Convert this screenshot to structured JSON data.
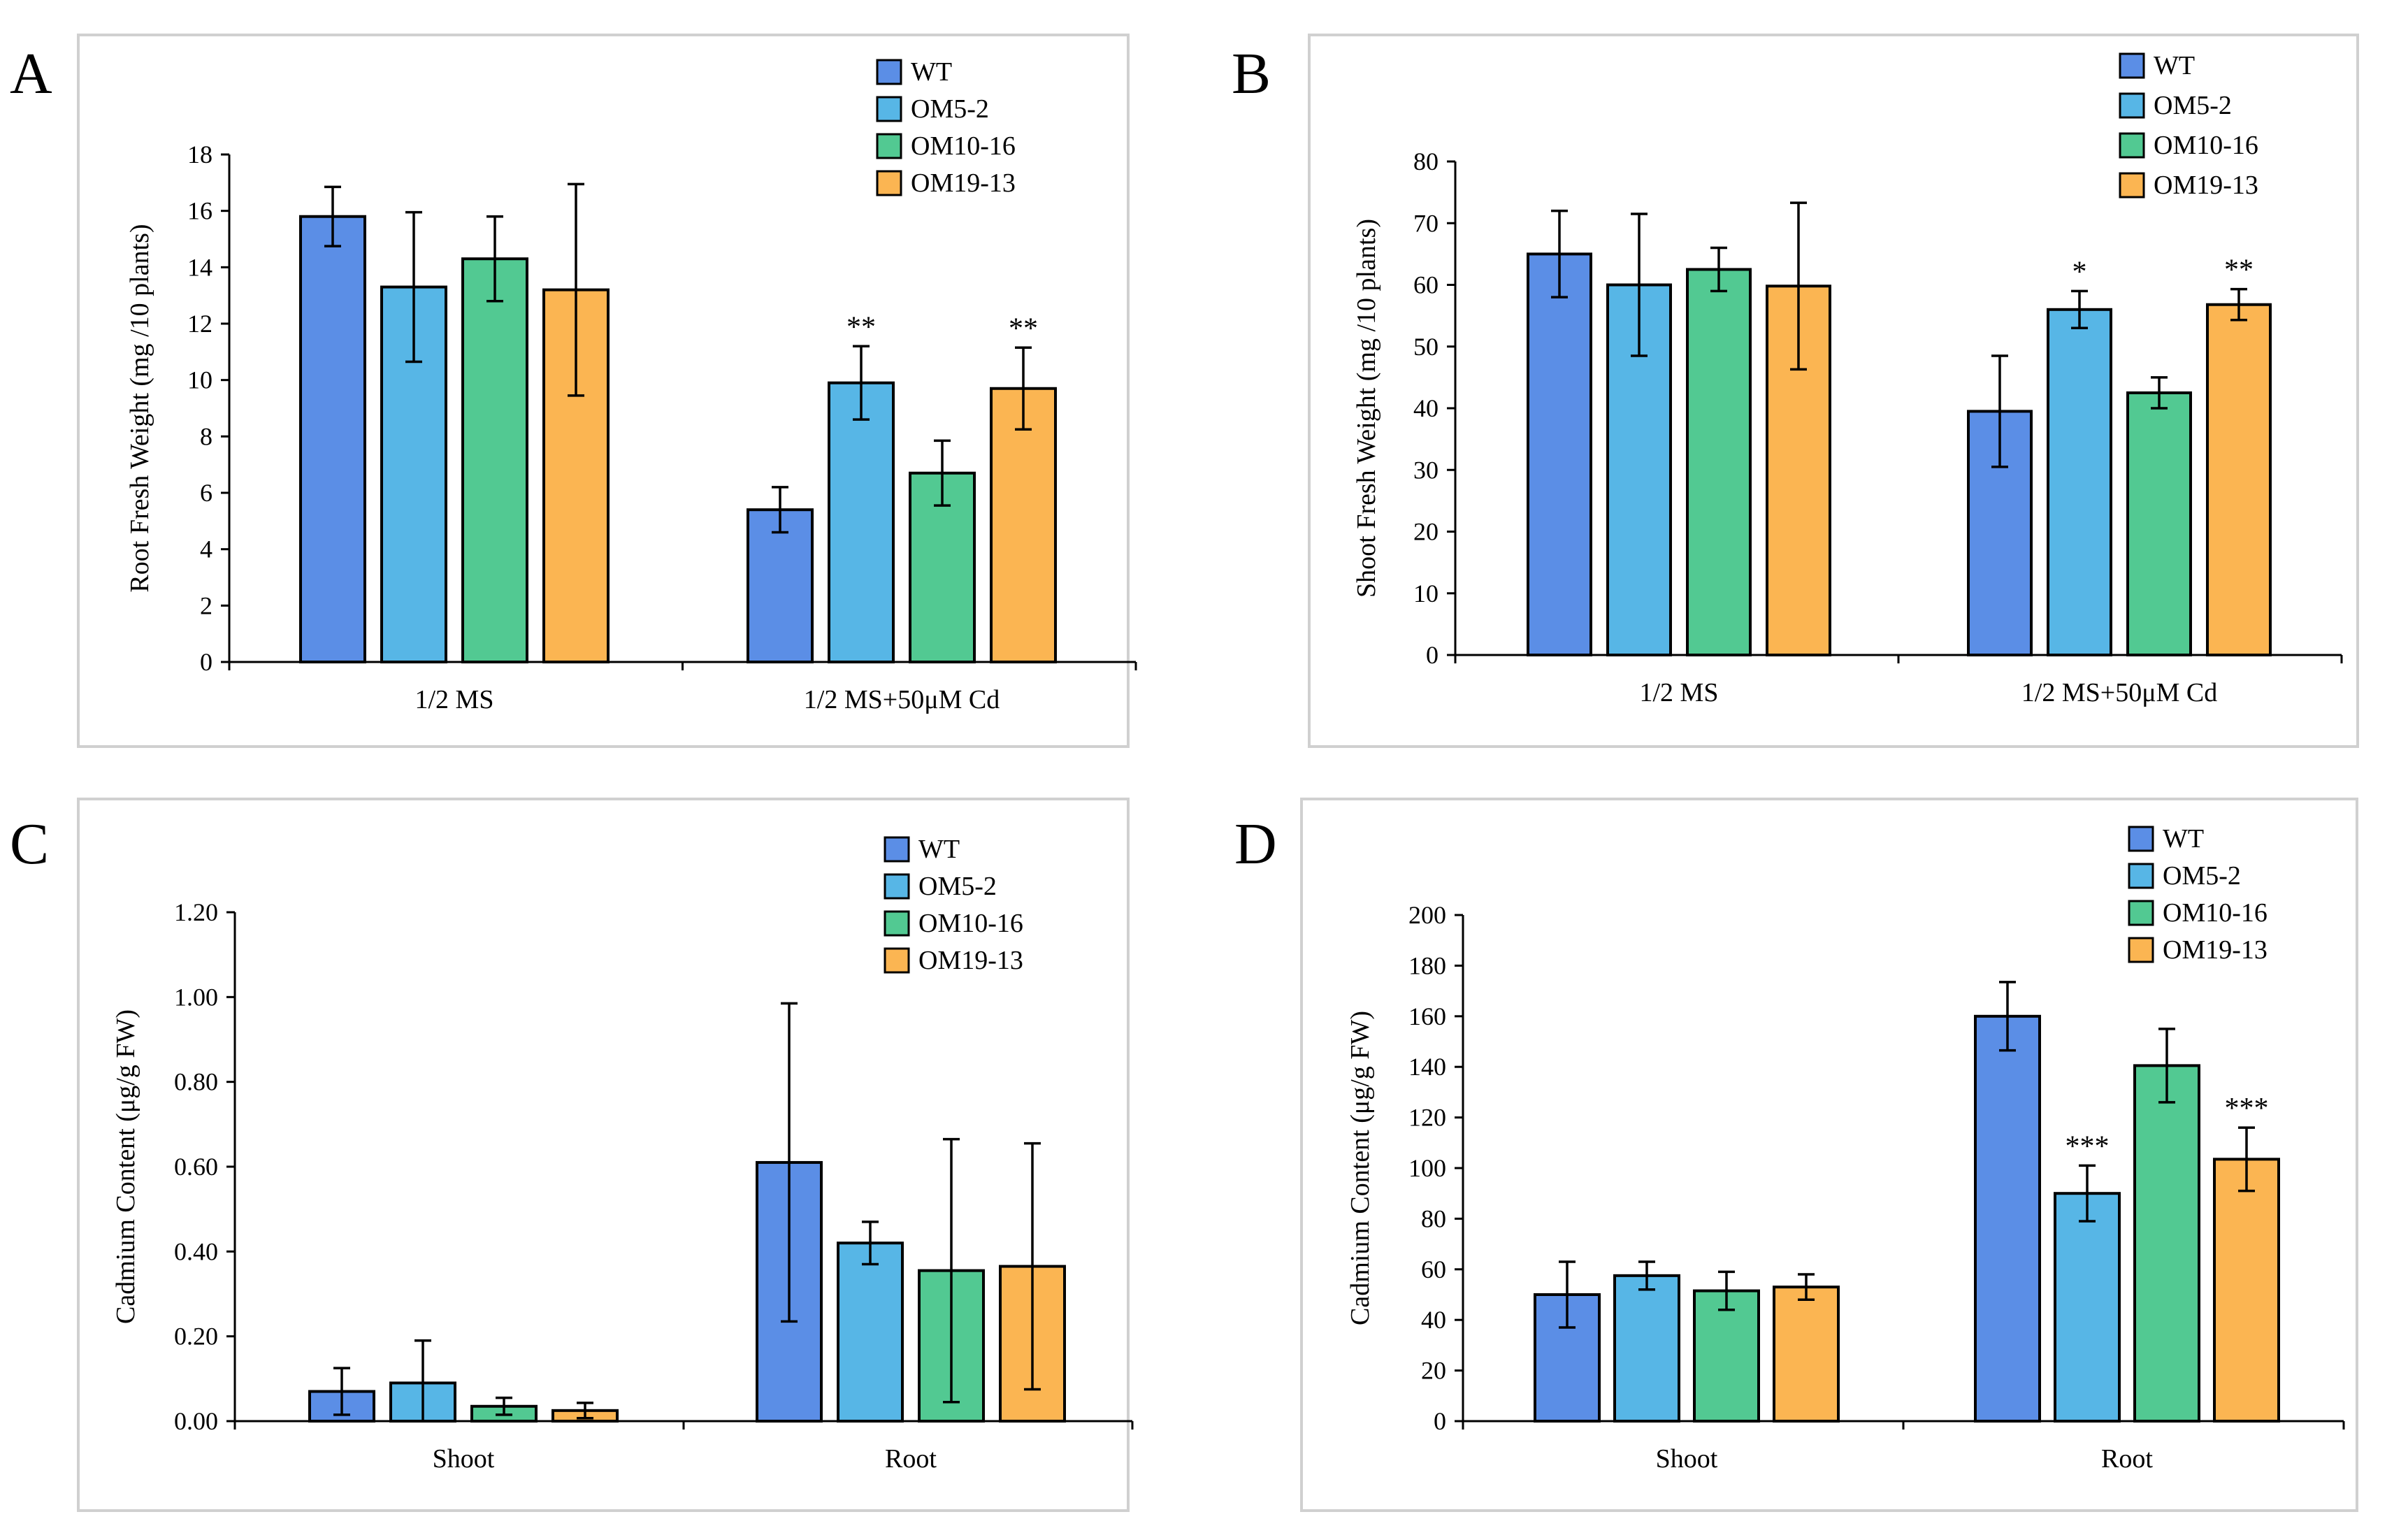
{
  "figure": {
    "series_colors": {
      "WT": "#5b8ee6",
      "OM5-2": "#57b6e6",
      "OM10-16": "#52c992",
      "OM19-13": "#fbb552"
    }
  },
  "chart_data": [
    {
      "panel": "A",
      "type": "bar",
      "ylabel": "Root Fresh Weight  (mg /10 plants)",
      "ylim": [
        0,
        18
      ],
      "ytick_step": 2,
      "ytick_decimals": 0,
      "categories": [
        "1/2 MS",
        "1/2 MS+50μM Cd"
      ],
      "legend_position": "top-right",
      "series": [
        {
          "name": "WT",
          "values": [
            15.8,
            5.4
          ],
          "errors": [
            1.05,
            0.8
          ],
          "sig": [
            "",
            ""
          ]
        },
        {
          "name": "OM5-2",
          "values": [
            13.3,
            9.9
          ],
          "errors": [
            2.65,
            1.3
          ],
          "sig": [
            "",
            "**"
          ]
        },
        {
          "name": "OM10-16",
          "values": [
            14.3,
            6.7
          ],
          "errors": [
            1.5,
            1.15
          ],
          "sig": [
            "",
            ""
          ]
        },
        {
          "name": "OM19-13",
          "values": [
            13.2,
            9.7
          ],
          "errors": [
            3.75,
            1.45
          ],
          "sig": [
            "",
            "**"
          ]
        }
      ]
    },
    {
      "panel": "B",
      "type": "bar",
      "ylabel": "Shoot Fresh Weight  (mg /10 plants)",
      "ylim": [
        0,
        80
      ],
      "ytick_step": 10,
      "ytick_decimals": 0,
      "categories": [
        "1/2 MS",
        "1/2 MS+50μM Cd"
      ],
      "legend_position": "top-right",
      "series": [
        {
          "name": "WT",
          "values": [
            65,
            39.5
          ],
          "errors": [
            7,
            9
          ],
          "sig": [
            "",
            ""
          ]
        },
        {
          "name": "OM5-2",
          "values": [
            60,
            56
          ],
          "errors": [
            11.5,
            3
          ],
          "sig": [
            "",
            "*"
          ]
        },
        {
          "name": "OM10-16",
          "values": [
            62.5,
            42.5
          ],
          "errors": [
            3.5,
            2.5
          ],
          "sig": [
            "",
            ""
          ]
        },
        {
          "name": "OM19-13",
          "values": [
            59.8,
            56.8
          ],
          "errors": [
            13.5,
            2.5
          ],
          "sig": [
            "",
            "**"
          ]
        }
      ]
    },
    {
      "panel": "C",
      "type": "bar",
      "ylabel": "Cadmium Content (μg/g FW)",
      "ylim": [
        0,
        1.2
      ],
      "ytick_step": 0.2,
      "ytick_decimals": 2,
      "categories": [
        "Shoot",
        "Root"
      ],
      "legend_position": "top-right",
      "series": [
        {
          "name": "WT",
          "values": [
            0.07,
            0.61
          ],
          "errors": [
            0.055,
            0.375
          ],
          "sig": [
            "",
            ""
          ]
        },
        {
          "name": "OM5-2",
          "values": [
            0.09,
            0.42
          ],
          "errors": [
            0.1,
            0.05
          ],
          "sig": [
            "",
            ""
          ]
        },
        {
          "name": "OM10-16",
          "values": [
            0.035,
            0.355
          ],
          "errors": [
            0.02,
            0.31
          ],
          "sig": [
            "",
            ""
          ]
        },
        {
          "name": "OM19-13",
          "values": [
            0.025,
            0.365
          ],
          "errors": [
            0.018,
            0.29
          ],
          "sig": [
            "",
            ""
          ]
        }
      ]
    },
    {
      "panel": "D",
      "type": "bar",
      "ylabel": "Cadmium Content (μg/g FW)",
      "ylim": [
        0,
        200
      ],
      "ytick_step": 20,
      "ytick_decimals": 0,
      "categories": [
        "Shoot",
        "Root"
      ],
      "legend_position": "top-right",
      "series": [
        {
          "name": "WT",
          "values": [
            50,
            160
          ],
          "errors": [
            13,
            13.5
          ],
          "sig": [
            "",
            ""
          ]
        },
        {
          "name": "OM5-2",
          "values": [
            57.5,
            90
          ],
          "errors": [
            5.5,
            11
          ],
          "sig": [
            "",
            "***"
          ]
        },
        {
          "name": "OM10-16",
          "values": [
            51.5,
            140.5
          ],
          "errors": [
            7.5,
            14.5
          ],
          "sig": [
            "",
            ""
          ]
        },
        {
          "name": "OM19-13",
          "values": [
            53,
            103.5
          ],
          "errors": [
            5,
            12.5
          ],
          "sig": [
            "",
            "***"
          ]
        }
      ]
    }
  ]
}
